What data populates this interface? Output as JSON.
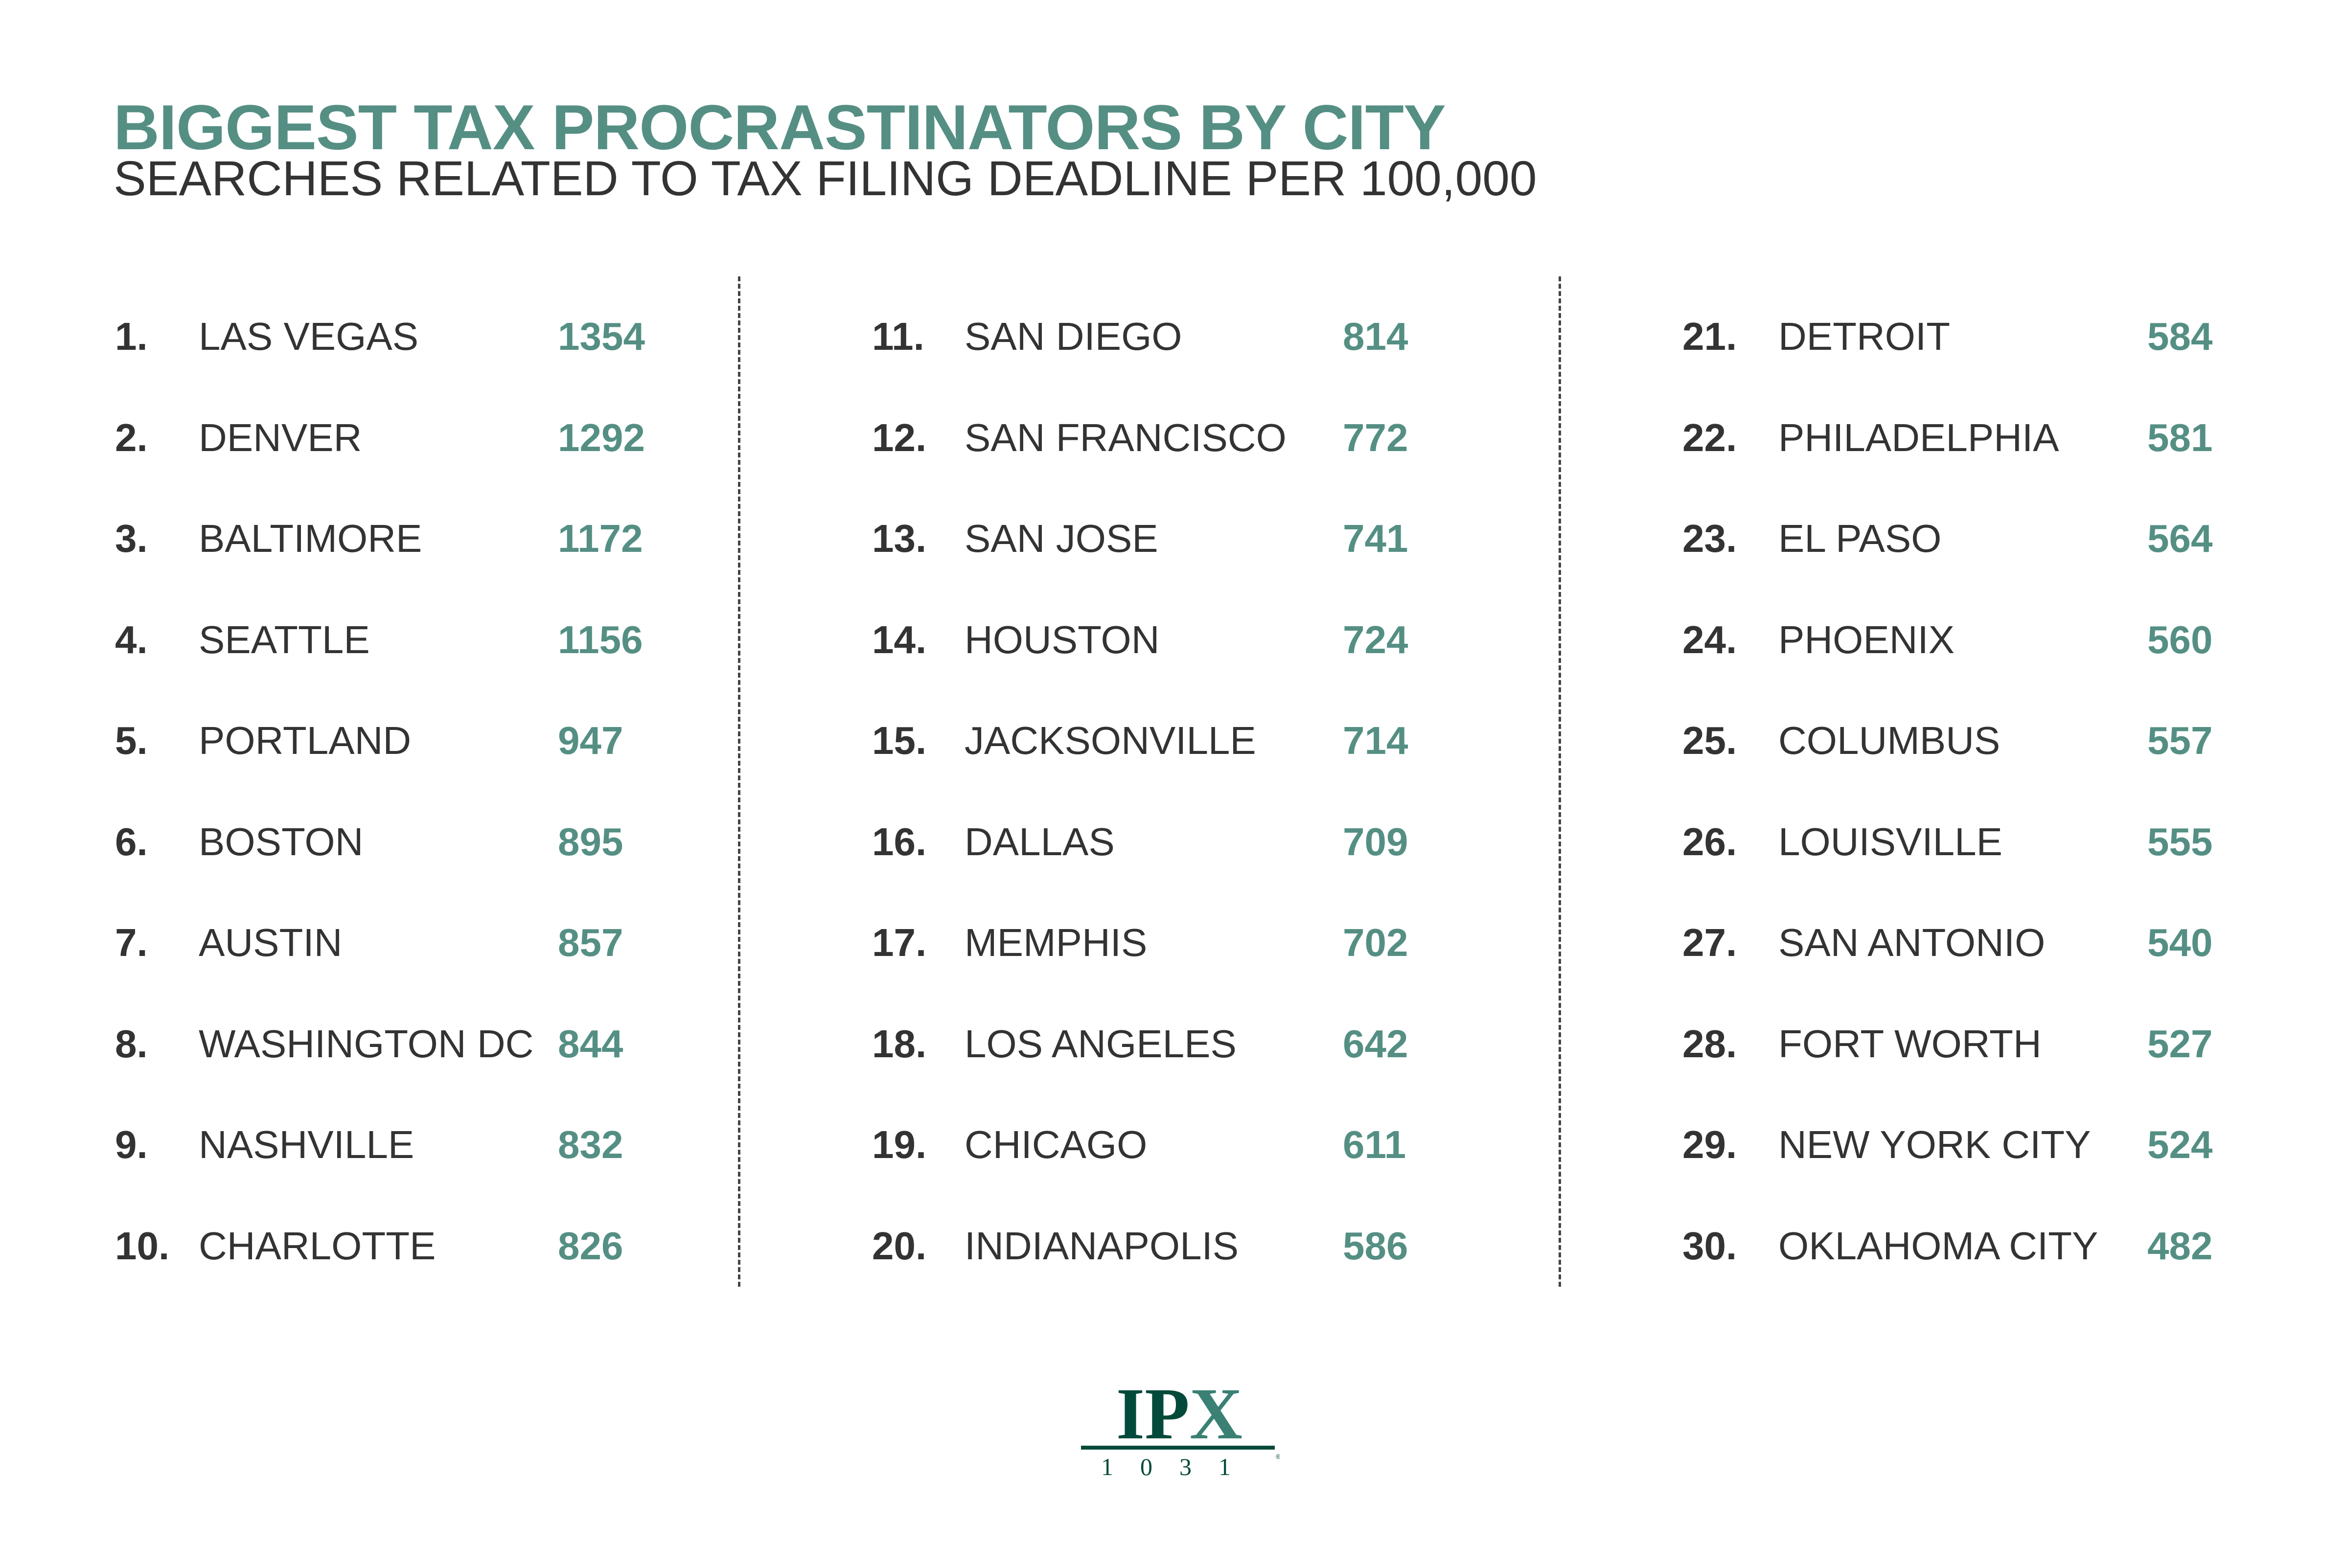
{
  "header": {
    "title": "BIGGEST TAX PROCRASTINATORS BY CITY",
    "subtitle": "SEARCHES RELATED TO TAX FILING DEADLINE PER 100,000"
  },
  "colors": {
    "accent": "#558f84",
    "text": "#333333",
    "logo_dark": "#034a3a",
    "logo_light": "#3a8174"
  },
  "rankings": [
    {
      "rank": "1.",
      "city": "LAS VEGAS",
      "value": "1354"
    },
    {
      "rank": "2.",
      "city": "DENVER",
      "value": "1292"
    },
    {
      "rank": "3.",
      "city": "BALTIMORE",
      "value": "1172"
    },
    {
      "rank": "4.",
      "city": "SEATTLE",
      "value": "1156"
    },
    {
      "rank": "5.",
      "city": "PORTLAND",
      "value": "947"
    },
    {
      "rank": "6.",
      "city": "BOSTON",
      "value": "895"
    },
    {
      "rank": "7.",
      "city": "AUSTIN",
      "value": "857"
    },
    {
      "rank": "8.",
      "city": "WASHINGTON DC",
      "value": "844"
    },
    {
      "rank": "9.",
      "city": "NASHVILLE",
      "value": "832"
    },
    {
      "rank": "10.",
      "city": "CHARLOTTE",
      "value": "826"
    },
    {
      "rank": "11.",
      "city": "SAN DIEGO",
      "value": "814"
    },
    {
      "rank": "12.",
      "city": "SAN FRANCISCO",
      "value": "772"
    },
    {
      "rank": "13.",
      "city": "SAN JOSE",
      "value": "741"
    },
    {
      "rank": "14.",
      "city": "HOUSTON",
      "value": "724"
    },
    {
      "rank": "15.",
      "city": "JACKSONVILLE",
      "value": "714"
    },
    {
      "rank": "16.",
      "city": "DALLAS",
      "value": "709"
    },
    {
      "rank": "17.",
      "city": "MEMPHIS",
      "value": "702"
    },
    {
      "rank": "18.",
      "city": "LOS ANGELES",
      "value": "642"
    },
    {
      "rank": "19.",
      "city": "CHICAGO",
      "value": "611"
    },
    {
      "rank": "20.",
      "city": "INDIANAPOLIS",
      "value": "586"
    },
    {
      "rank": "21.",
      "city": "DETROIT",
      "value": "584"
    },
    {
      "rank": "22.",
      "city": "PHILADELPHIA",
      "value": "581"
    },
    {
      "rank": "23.",
      "city": "EL PASO",
      "value": "564"
    },
    {
      "rank": "24.",
      "city": "PHOENIX",
      "value": "560"
    },
    {
      "rank": "25.",
      "city": "COLUMBUS",
      "value": "557"
    },
    {
      "rank": "26.",
      "city": "LOUISVILLE",
      "value": "555"
    },
    {
      "rank": "27.",
      "city": "SAN ANTONIO",
      "value": "540"
    },
    {
      "rank": "28.",
      "city": "FORT WORTH",
      "value": "527"
    },
    {
      "rank": "29.",
      "city": "NEW YORK CITY",
      "value": "524"
    },
    {
      "rank": "30.",
      "city": "OKLAHOMA CITY",
      "value": "482"
    }
  ],
  "logo": {
    "text": "IPX",
    "number": "1031",
    "registered": "®"
  }
}
